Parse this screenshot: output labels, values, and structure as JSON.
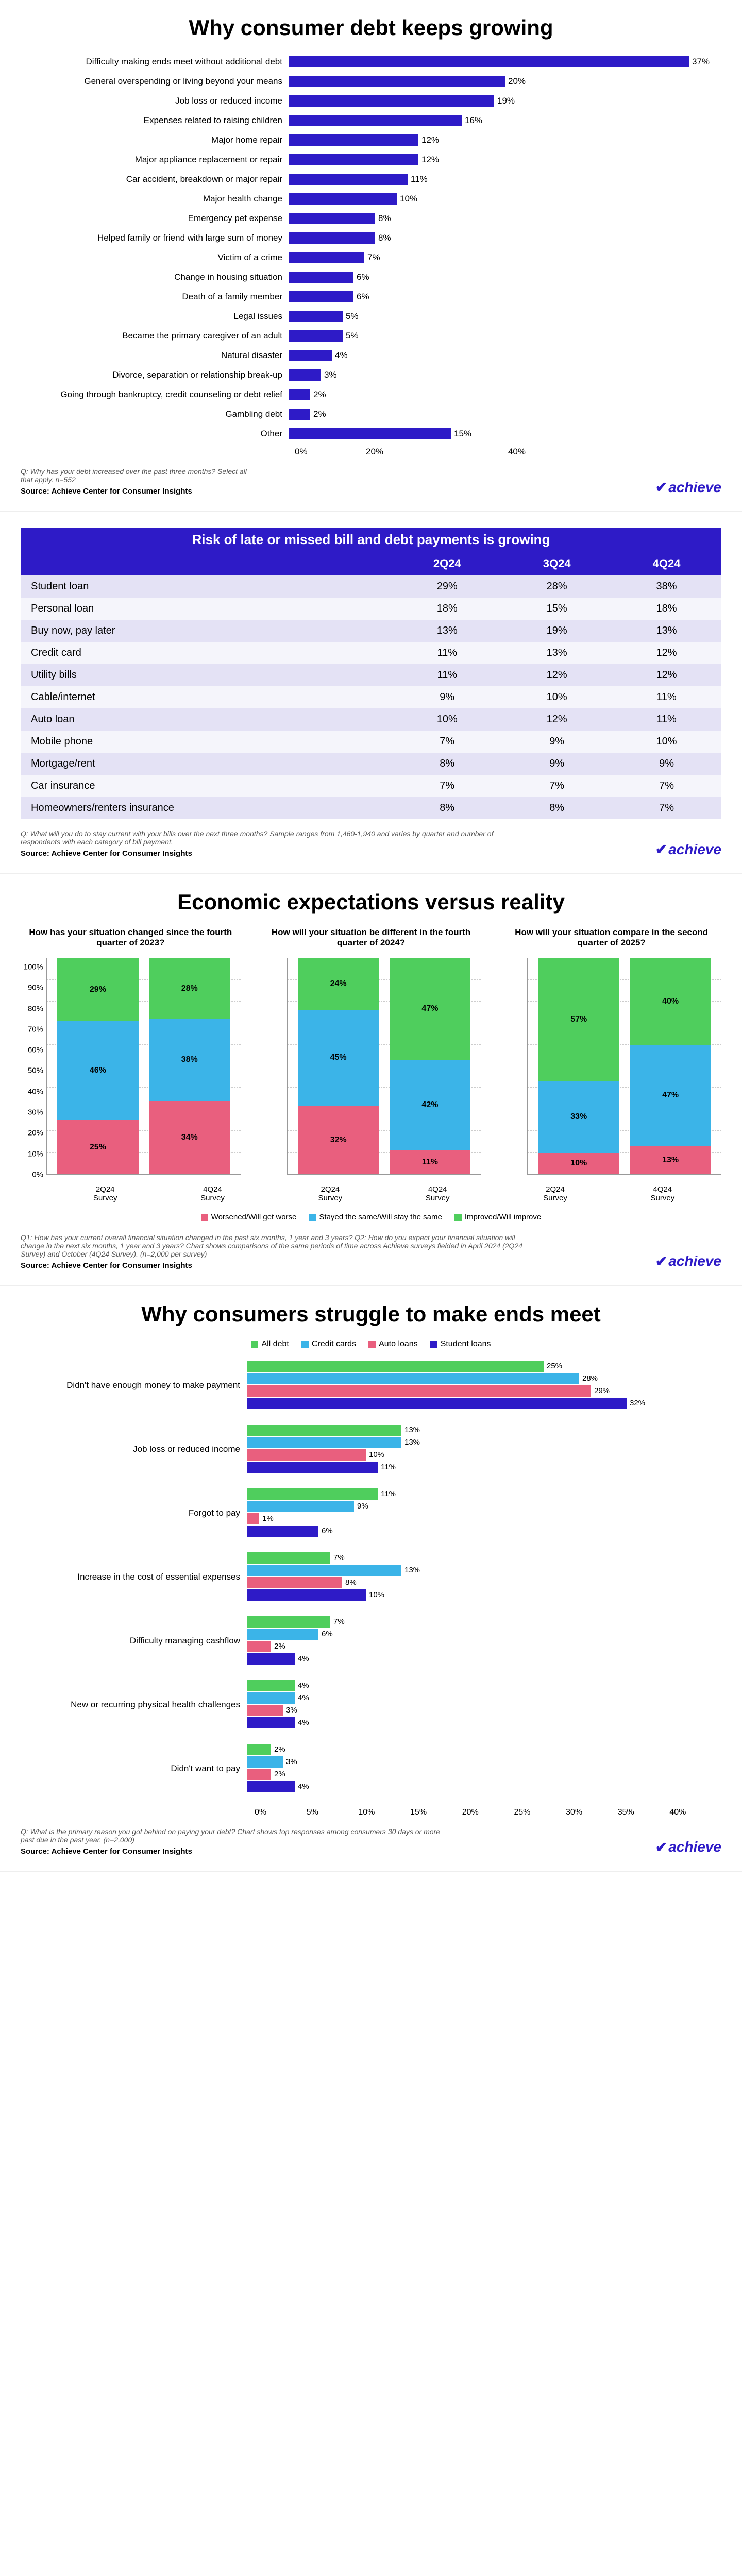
{
  "brand": "achieve",
  "source": "Source: Achieve Center for Consumer Insights",
  "chart1": {
    "type": "bar-horizontal",
    "title": "Why consumer debt keeps growing",
    "question": "Q: Why has your debt increased over the past three months? Select all that apply. n=552",
    "bar_color": "#2e1bc7",
    "xlim": 40,
    "xticks": [
      "0%",
      "20%",
      "40%"
    ],
    "items": [
      {
        "label": "Difficulty making ends meet without additional debt",
        "value": 37
      },
      {
        "label": "General overspending or living beyond your means",
        "value": 20
      },
      {
        "label": "Job loss or reduced income",
        "value": 19
      },
      {
        "label": "Expenses related to raising children",
        "value": 16
      },
      {
        "label": "Major home repair",
        "value": 12
      },
      {
        "label": "Major appliance replacement or repair",
        "value": 12
      },
      {
        "label": "Car accident, breakdown or major repair",
        "value": 11
      },
      {
        "label": "Major health change",
        "value": 10
      },
      {
        "label": "Emergency pet expense",
        "value": 8
      },
      {
        "label": "Helped family or friend with large sum of money",
        "value": 8
      },
      {
        "label": "Victim of a crime",
        "value": 7
      },
      {
        "label": "Change in housing situation",
        "value": 6
      },
      {
        "label": "Death of a family member",
        "value": 6
      },
      {
        "label": "Legal issues",
        "value": 5
      },
      {
        "label": "Became the primary caregiver of an adult",
        "value": 5
      },
      {
        "label": "Natural disaster",
        "value": 4
      },
      {
        "label": "Divorce, separation or relationship break-up",
        "value": 3
      },
      {
        "label": "Going through bankruptcy, credit counseling or debt relief",
        "value": 2
      },
      {
        "label": "Gambling debt",
        "value": 2
      },
      {
        "label": "Other",
        "value": 15
      }
    ]
  },
  "chart2": {
    "type": "table",
    "title": "Risk of late or missed bill and debt payments is growing",
    "columns": [
      "",
      "2Q24",
      "3Q24",
      "4Q24"
    ],
    "header_bg": "#2e1bc7",
    "row_odd_bg": "#e4e2f5",
    "row_even_bg": "#f5f5fb",
    "question": "Q: What will you do to stay current with your bills over the next three months? Sample ranges from 1,460-1,940 and varies by quarter and number of respondents with each category of bill payment.",
    "rows": [
      [
        "Student loan",
        "29%",
        "28%",
        "38%"
      ],
      [
        "Personal loan",
        "18%",
        "15%",
        "18%"
      ],
      [
        "Buy now, pay later",
        "13%",
        "19%",
        "13%"
      ],
      [
        "Credit card",
        "11%",
        "13%",
        "12%"
      ],
      [
        "Utility bills",
        "11%",
        "12%",
        "12%"
      ],
      [
        "Cable/internet",
        "9%",
        "10%",
        "11%"
      ],
      [
        "Auto loan",
        "10%",
        "12%",
        "11%"
      ],
      [
        "Mobile phone",
        "7%",
        "9%",
        "10%"
      ],
      [
        "Mortgage/rent",
        "8%",
        "9%",
        "9%"
      ],
      [
        "Car insurance",
        "7%",
        "7%",
        "7%"
      ],
      [
        "Homeowners/renters insurance",
        "8%",
        "8%",
        "7%"
      ]
    ]
  },
  "chart3": {
    "type": "stacked-bar",
    "title": "Economic expectations versus reality",
    "question": "Q1: How has your current overall financial situation changed in the past six months, 1 year and 3 years? Q2: How do you expect your financial situation will change in the next six months, 1 year and 3 years? Chart shows comparisons of the same periods of time across Achieve surveys fielded in April 2024 (2Q24 Survey) and October (4Q24 Survey). (n=2,000 per survey)",
    "ylim": 100,
    "yticks": [
      "0%",
      "10%",
      "20%",
      "30%",
      "40%",
      "50%",
      "60%",
      "70%",
      "80%",
      "90%",
      "100%"
    ],
    "colors": {
      "worse": "#e95f7e",
      "same": "#3bb4e8",
      "better": "#4fce5d"
    },
    "legend": [
      {
        "key": "worse",
        "label": "Worsened/Will get worse"
      },
      {
        "key": "same",
        "label": "Stayed the same/Will stay the same"
      },
      {
        "key": "better",
        "label": "Improved/Will improve"
      }
    ],
    "xlabels": [
      "2Q24\nSurvey",
      "4Q24\nSurvey"
    ],
    "panels": [
      {
        "title": "How has your situation changed since the fourth quarter of 2023?",
        "cols": [
          {
            "worse": 25,
            "same": 46,
            "better": 29
          },
          {
            "worse": 34,
            "same": 38,
            "better": 28
          }
        ]
      },
      {
        "title": "How will your situation be different in the fourth quarter of 2024?",
        "cols": [
          {
            "worse": 32,
            "same": 45,
            "better": 24
          },
          {
            "worse": 11,
            "same": 42,
            "better": 47
          }
        ]
      },
      {
        "title": "How will your situation compare in the second quarter of 2025?",
        "cols": [
          {
            "worse": 10,
            "same": 33,
            "better": 57
          },
          {
            "worse": 13,
            "same": 47,
            "better": 40
          }
        ]
      }
    ]
  },
  "chart4": {
    "type": "grouped-bar-horizontal",
    "title": "Why consumers struggle to make ends meet",
    "question": "Q: What is the primary reason you got behind on paying your debt? Chart shows top responses among consumers 30 days or more past due in the past year. (n=2,000)",
    "xlim": 40,
    "xticks": [
      "0%",
      "5%",
      "10%",
      "15%",
      "20%",
      "25%",
      "30%",
      "35%",
      "40%"
    ],
    "series": [
      {
        "key": "all",
        "label": "All debt",
        "color": "#4fce5d"
      },
      {
        "key": "cc",
        "label": "Credit cards",
        "color": "#3bb4e8"
      },
      {
        "key": "auto",
        "label": "Auto loans",
        "color": "#e95f7e"
      },
      {
        "key": "student",
        "label": "Student loans",
        "color": "#2e1bc7"
      }
    ],
    "items": [
      {
        "label": "Didn't have enough money to make payment",
        "values": {
          "all": 25,
          "cc": 28,
          "auto": 29,
          "student": 32
        }
      },
      {
        "label": "Job loss or reduced income",
        "values": {
          "all": 13,
          "cc": 13,
          "auto": 10,
          "student": 11
        }
      },
      {
        "label": "Forgot to pay",
        "values": {
          "all": 11,
          "cc": 9,
          "auto": 1,
          "student": 6
        }
      },
      {
        "label": "Increase in the cost of essential expenses",
        "values": {
          "all": 7,
          "cc": 13,
          "auto": 8,
          "student": 10
        }
      },
      {
        "label": "Difficulty managing cashflow",
        "values": {
          "all": 7,
          "cc": 6,
          "auto": 2,
          "student": 4
        }
      },
      {
        "label": "New or recurring physical health challenges",
        "values": {
          "all": 4,
          "cc": 4,
          "auto": 3,
          "student": 4
        }
      },
      {
        "label": "Didn't want to pay",
        "values": {
          "all": 2,
          "cc": 3,
          "auto": 2,
          "student": 4
        }
      }
    ]
  }
}
